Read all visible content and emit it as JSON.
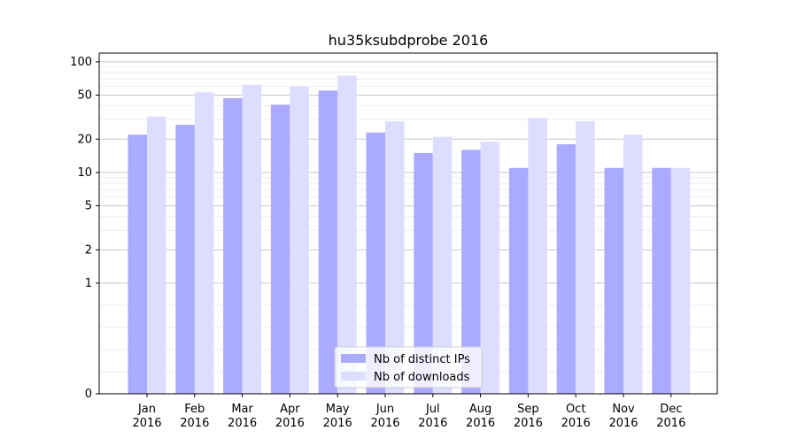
{
  "chart_data": {
    "type": "bar",
    "title": "hu35ksubdprobe 2016",
    "xlabel": "",
    "ylabel": "",
    "yscale": "symlog",
    "ylim": [
      0,
      120
    ],
    "yticks": [
      0,
      1,
      2,
      5,
      10,
      20,
      50,
      100
    ],
    "categories": [
      [
        "Jan",
        "2016"
      ],
      [
        "Feb",
        "2016"
      ],
      [
        "Mar",
        "2016"
      ],
      [
        "Apr",
        "2016"
      ],
      [
        "May",
        "2016"
      ],
      [
        "Jun",
        "2016"
      ],
      [
        "Jul",
        "2016"
      ],
      [
        "Aug",
        "2016"
      ],
      [
        "Sep",
        "2016"
      ],
      [
        "Oct",
        "2016"
      ],
      [
        "Nov",
        "2016"
      ],
      [
        "Dec",
        "2016"
      ]
    ],
    "series": [
      {
        "name": "Nb of distinct IPs",
        "color": "#aaaaff",
        "values": [
          22,
          27,
          47,
          41,
          55,
          23,
          15,
          16,
          11,
          18,
          11,
          11
        ]
      },
      {
        "name": "Nb of downloads",
        "color": "#ddddff",
        "values": [
          32,
          53,
          62,
          60,
          75,
          29,
          21,
          19,
          31,
          29,
          22,
          11
        ]
      }
    ],
    "legend_position": "bottom-center",
    "grid": true
  }
}
